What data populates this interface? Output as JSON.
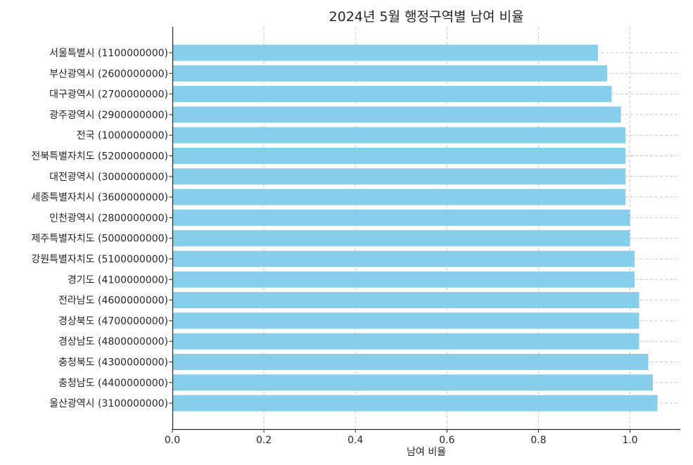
{
  "chart_data": {
    "type": "bar",
    "orientation": "horizontal",
    "title": "2024년 5월 행정구역별 남여 비율",
    "xlabel": "남여 비율",
    "ylabel": "",
    "xlim": [
      0,
      1.11
    ],
    "xticks": [
      0.0,
      0.2,
      0.4,
      0.6,
      0.8,
      1.0
    ],
    "xtick_labels": [
      "0.0",
      "0.2",
      "0.4",
      "0.6",
      "0.8",
      "1.0"
    ],
    "grid": true,
    "bar_color": "#87ceeb",
    "categories": [
      "서울특별시 (1100000000)",
      "부산광역시 (2600000000)",
      "대구광역시 (2700000000)",
      "광주광역시 (2900000000)",
      "전국 (1000000000)",
      "전북특별자치도 (5200000000)",
      "대전광역시 (3000000000)",
      "세종특별자치시 (3600000000)",
      "인천광역시 (2800000000)",
      "제주특별자치도 (5000000000)",
      "강원특별자치도 (5100000000)",
      "경기도 (4100000000)",
      "전라남도 (4600000000)",
      "경상북도 (4700000000)",
      "경상남도 (4800000000)",
      "충청북도 (4300000000)",
      "충청남도 (4400000000)",
      "울산광역시 (3100000000)"
    ],
    "values": [
      0.93,
      0.95,
      0.96,
      0.98,
      0.99,
      0.99,
      0.99,
      0.99,
      1.0,
      1.0,
      1.01,
      1.01,
      1.02,
      1.02,
      1.02,
      1.04,
      1.05,
      1.06
    ]
  }
}
